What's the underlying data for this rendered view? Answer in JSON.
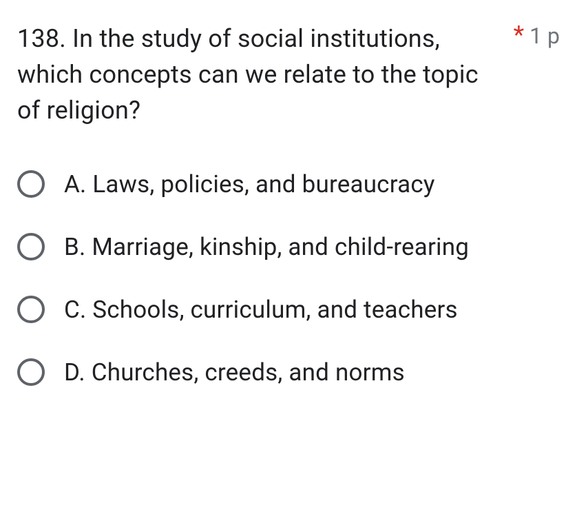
{
  "question": {
    "text": "138. In the study of social institutions, which concepts can we relate to the topic of religion?",
    "required_marker": "*",
    "points": "1 p"
  },
  "options": [
    {
      "label": "A. Laws, policies, and bureaucracy"
    },
    {
      "label": "B. Marriage, kinship, and child-rearing"
    },
    {
      "label": "C. Schools, curriculum, and teachers"
    },
    {
      "label": "D. Churches, creeds, and norms"
    }
  ],
  "colors": {
    "text": "#202124",
    "muted": "#70757a",
    "required": "#d93025",
    "radio_border": "#5f6368",
    "background": "#ffffff"
  }
}
